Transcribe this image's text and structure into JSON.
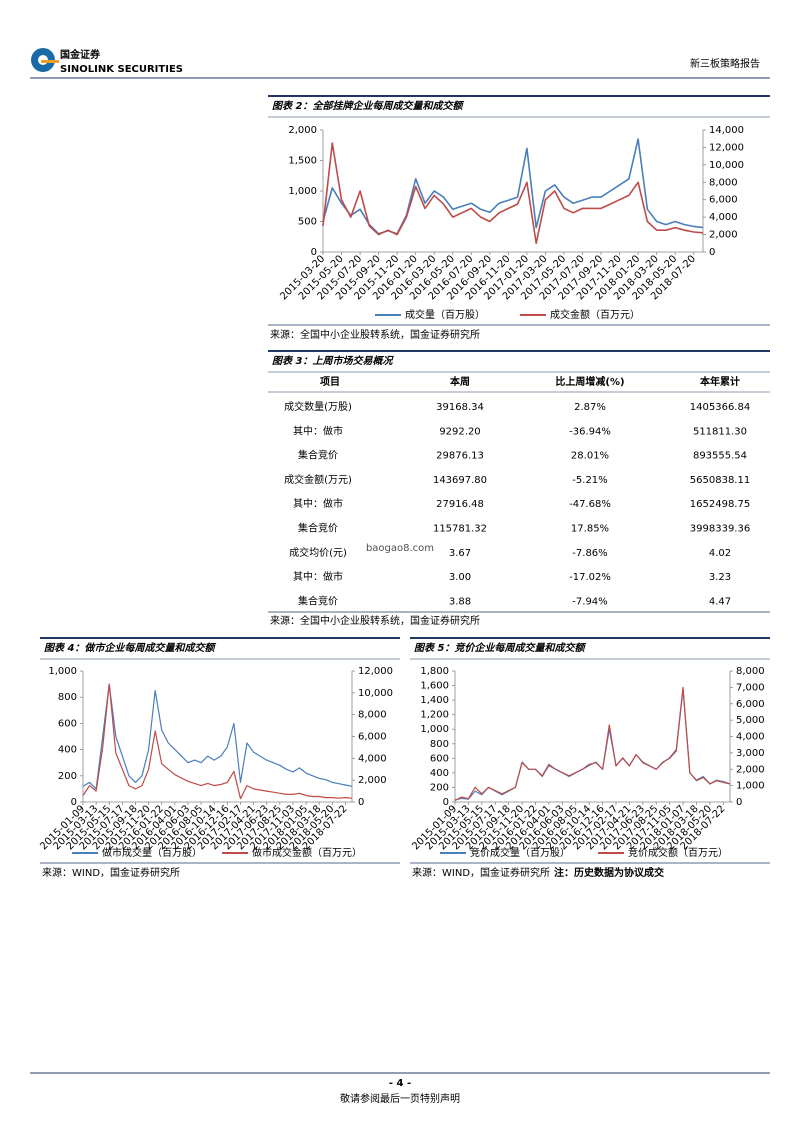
{
  "header": {
    "company": "国金证券",
    "company_en": "SINOLINK SECURITIES",
    "report": "新三板策略报告"
  },
  "watermark": "baogao8.com",
  "figures": [
    {
      "title": "图表 2：全部挂牌企业每周成交量和成交额",
      "source": "来源：全国中小企业股转系统，国金证券研究所",
      "chart_data": {
        "type": "line",
        "categories": [
          "2015-03-20",
          null,
          "2015-05-20",
          null,
          "2015-07-20",
          null,
          "2015-09-20",
          null,
          "2015-11-20",
          null,
          "2016-01-20",
          null,
          "2016-03-20",
          null,
          "2016-05-20",
          null,
          "2016-07-20",
          null,
          "2016-09-20",
          null,
          "2016-11-20",
          null,
          "2017-01-20",
          null,
          "2017-03-20",
          null,
          "2017-05-20",
          null,
          "2017-07-20",
          null,
          "2017-09-20",
          null,
          "2017-11-20",
          null,
          "2018-01-20",
          null,
          "2018-03-20",
          null,
          "2018-05-20",
          null,
          "2018-07-20",
          null
        ],
        "ylim": [
          0,
          2000
        ],
        "yticks": [
          0,
          500,
          {
            "value": 1000,
            "label": "1,000"
          },
          {
            "value": 1500,
            "label": "1,500"
          },
          {
            "value": 2000,
            "label": "2,000"
          }
        ],
        "y2lim": [
          0,
          14000
        ],
        "y2ticks": [
          0,
          {
            "value": 2000,
            "label": "2,000"
          },
          {
            "value": 4000,
            "label": "4,000"
          },
          {
            "value": 6000,
            "label": "6,000"
          },
          {
            "value": 8000,
            "label": "8,000"
          },
          {
            "value": 10000,
            "label": "10,000"
          },
          {
            "value": 12000,
            "label": "12,000"
          },
          {
            "value": 14000,
            "label": "14,000"
          }
        ],
        "series": [
          {
            "name": "成交量（百万股）",
            "color": "#4a7ebb",
            "values": [
              500,
              1050,
              800,
              600,
              700,
              450,
              300,
              350,
              300,
              600,
              1200,
              800,
              1000,
              900,
              700,
              750,
              800,
              700,
              650,
              800,
              850,
              900,
              1700,
              400,
              1000,
              1100,
              900,
              800,
              850,
              900,
              900,
              1000,
              1100,
              1200,
              1850,
              700,
              500,
              450,
              500,
              450,
              420,
              400
            ]
          },
          {
            "name": "成交金额（百万元）",
            "color": "#be4b48",
            "axis": "y2",
            "values": [
              3000,
              12500,
              6000,
              4000,
              7000,
              3000,
              2000,
              2500,
              2000,
              4000,
              7500,
              5000,
              6500,
              5500,
              4000,
              4500,
              5000,
              4000,
              3500,
              4500,
              5000,
              5500,
              8000,
              1000,
              6000,
              7000,
              5000,
              4500,
              5000,
              5000,
              5000,
              5500,
              6000,
              6500,
              8000,
              3500,
              2500,
              2500,
              2800,
              2500,
              2300,
              2200
            ]
          }
        ]
      }
    },
    {
      "title": "图表 4：做市企业每周成交量和成交额",
      "source": "来源：WIND，国金证券研究所",
      "chart_data": {
        "type": "line",
        "categories": [
          "2015-01-09",
          null,
          "2015-03-13",
          null,
          "2015-05-15",
          null,
          "2015-07-17",
          null,
          "2015-09-18",
          null,
          "2015-11-20",
          null,
          "2016-01-22",
          null,
          "2016-04-01",
          null,
          "2016-06-03",
          null,
          "2016-08-05",
          null,
          "2016-10-14",
          null,
          "2016-12-16",
          null,
          "2017-02-17",
          null,
          "2017-04-21",
          null,
          "2017-06-23",
          null,
          "2017-08-25",
          null,
          "2017-11-03",
          null,
          "2018-01-05",
          null,
          "2018-03-18",
          null,
          "2018-05-20",
          null,
          "2018-07-22",
          null
        ],
        "ylim": [
          0,
          1000
        ],
        "yticks": [
          0,
          200,
          400,
          600,
          800,
          {
            "value": 1000,
            "label": "1,000"
          }
        ],
        "y2lim": [
          0,
          12000
        ],
        "y2ticks": [
          0,
          {
            "value": 2000,
            "label": "2,000"
          },
          {
            "value": 4000,
            "label": "4,000"
          },
          {
            "value": 6000,
            "label": "6,000"
          },
          {
            "value": 8000,
            "label": "8,000"
          },
          {
            "value": 10000,
            "label": "10,000"
          },
          {
            "value": 12000,
            "label": "12,000"
          }
        ],
        "series": [
          {
            "name": "做市成交量（百万股）",
            "color": "#4a7ebb",
            "values": [
              120,
              150,
              100,
              500,
              900,
              500,
              350,
              200,
              150,
              200,
              400,
              850,
              550,
              450,
              400,
              350,
              300,
              320,
              300,
              350,
              320,
              350,
              420,
              600,
              150,
              450,
              380,
              350,
              320,
              300,
              280,
              250,
              230,
              260,
              220,
              200,
              180,
              170,
              150,
              140,
              130,
              120
            ]
          },
          {
            "name": "做市成交金额（百万元）",
            "color": "#be4b48",
            "axis": "y2",
            "values": [
              600,
              1500,
              1000,
              5000,
              10800,
              4500,
              3000,
              1500,
              1200,
              1500,
              3000,
              6500,
              3500,
              3000,
              2500,
              2200,
              1900,
              1700,
              1500,
              1700,
              1500,
              1600,
              1800,
              2800,
              300,
              1500,
              1200,
              1100,
              1000,
              900,
              800,
              700,
              700,
              800,
              600,
              500,
              500,
              400,
              400,
              350,
              400,
              350
            ]
          }
        ]
      }
    },
    {
      "title": "图表 5：竞价企业每周成交量和成交额",
      "source": "来源：WIND，国金证券研究所",
      "note": "注：历史数据为协议成交",
      "chart_data": {
        "type": "line",
        "categories": [
          "2015-01-09",
          null,
          "2015-03-13",
          null,
          "2015-05-15",
          null,
          "2015-07-17",
          null,
          "2015-09-18",
          null,
          "2015-11-20",
          null,
          "2016-01-22",
          null,
          "2016-04-01",
          null,
          "2016-06-03",
          null,
          "2016-08-05",
          null,
          "2016-10-14",
          null,
          "2016-12-16",
          null,
          "2017-02-17",
          null,
          "2017-04-21",
          null,
          "2017-06-23",
          null,
          "2017-08-25",
          null,
          "2017-11-05",
          null,
          "2018-01-07",
          null,
          "2018-03-18",
          null,
          "2018-05-20",
          null,
          "2018-07-22",
          null
        ],
        "ylim": [
          0,
          1800
        ],
        "yticks": [
          0,
          200,
          400,
          600,
          800,
          {
            "value": 1000,
            "label": "1,000"
          },
          {
            "value": 1200,
            "label": "1,200"
          },
          {
            "value": 1400,
            "label": "1,400"
          },
          {
            "value": 1600,
            "label": "1,600"
          },
          {
            "value": 1800,
            "label": "1,800"
          }
        ],
        "y2lim": [
          0,
          8000
        ],
        "y2ticks": [
          0,
          {
            "value": 1000,
            "label": "1,000"
          },
          {
            "value": 2000,
            "label": "2,000"
          },
          {
            "value": 3000,
            "label": "3,000"
          },
          {
            "value": 4000,
            "label": "4,000"
          },
          {
            "value": 5000,
            "label": "5,000"
          },
          {
            "value": 6000,
            "label": "6,000"
          },
          {
            "value": 7000,
            "label": "7,000"
          },
          {
            "value": 8000,
            "label": "8,000"
          }
        ],
        "series": [
          {
            "name": "竞价成交量（百万股）",
            "color": "#4a7ebb",
            "values": [
              30,
              50,
              40,
              150,
              100,
              200,
              150,
              100,
              150,
              200,
              550,
              450,
              450,
              350,
              500,
              450,
              400,
              350,
              400,
              450,
              500,
              550,
              450,
              1000,
              500,
              600,
              500,
              650,
              550,
              500,
              450,
              550,
              600,
              700,
              1550,
              400,
              300,
              350,
              250,
              300,
              280,
              250
            ]
          },
          {
            "name": "竞价成交额（百万元）",
            "color": "#be4b48",
            "axis": "y2",
            "values": [
              100,
              300,
              200,
              900,
              500,
              900,
              700,
              500,
              700,
              900,
              2400,
              2000,
              2000,
              1600,
              2300,
              2000,
              1800,
              1600,
              1800,
              2000,
              2300,
              2400,
              2000,
              4700,
              2200,
              2700,
              2200,
              2900,
              2400,
              2200,
              2000,
              2400,
              2700,
              3200,
              7000,
              1800,
              1300,
              1500,
              1100,
              1300,
              1200,
              1100
            ]
          }
        ]
      }
    }
  ],
  "table": {
    "title": "图表 3：上周市场交易概况",
    "columns": [
      "项目",
      "本周",
      "比上周增减(%)",
      "本年累计"
    ],
    "rows": [
      [
        "成交数量(万股)",
        "39168.34",
        "2.87%",
        "1405366.84"
      ],
      [
        "其中：做市",
        "9292.20",
        "-36.94%",
        "511811.30"
      ],
      [
        "集合竞价",
        "29876.13",
        "28.01%",
        "893555.54"
      ],
      [
        "成交金额(万元)",
        "143697.80",
        "-5.21%",
        "5650838.11"
      ],
      [
        "其中：做市",
        "27916.48",
        "-47.68%",
        "1652498.75"
      ],
      [
        "集合竞价",
        "115781.32",
        "17.85%",
        "3998339.36"
      ],
      [
        "成交均价(元)",
        "3.67",
        "-7.86%",
        "4.02"
      ],
      [
        "其中：做市",
        "3.00",
        "-17.02%",
        "3.23"
      ],
      [
        "集合竞价",
        "3.88",
        "-7.94%",
        "4.47"
      ]
    ],
    "source": "来源：全国中小企业股转系统，国金证券研究所"
  },
  "footer": {
    "page": "- 4 -",
    "disclaimer": "敬请参阅最后一页特别声明"
  }
}
